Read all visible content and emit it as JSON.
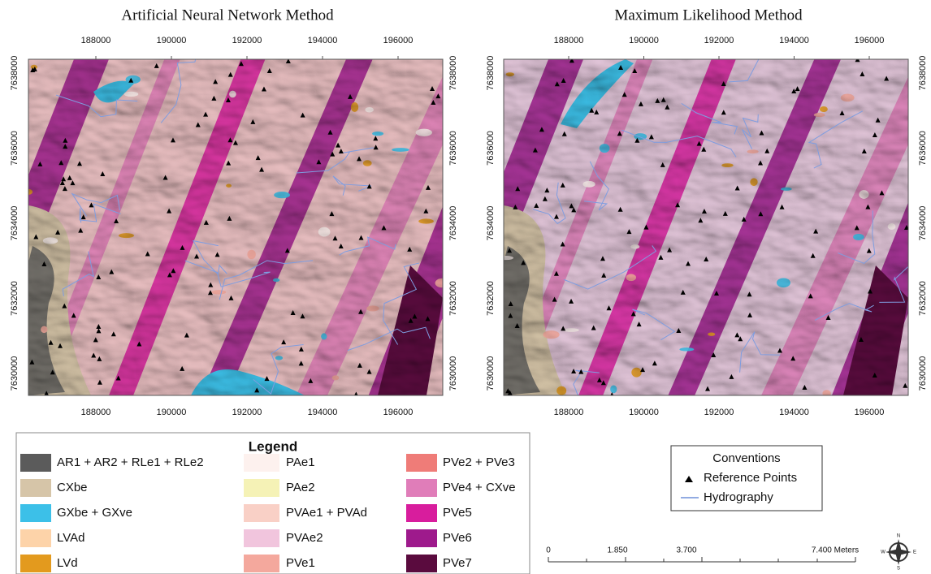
{
  "maps": [
    {
      "title": "Artificial Neural Network Method"
    },
    {
      "title": "Maximum Likelihood Method"
    }
  ],
  "xticks": [
    188000,
    190000,
    192000,
    194000,
    196000
  ],
  "yticks": [
    7630000,
    7632000,
    7634000,
    7636000,
    7638000
  ],
  "legend": {
    "title": "Legend",
    "items": [
      {
        "label": "AR1 + AR2 + RLe1 + RLe2",
        "color": "#5b5b5b"
      },
      {
        "label": "CXbe",
        "color": "#d6c5a8"
      },
      {
        "label": "GXbe + GXve",
        "color": "#3cc0e8"
      },
      {
        "label": "LVAd",
        "color": "#fdd3a9"
      },
      {
        "label": "LVd",
        "color": "#e39a1e"
      },
      {
        "label": "PAe1",
        "color": "#fdf1ee"
      },
      {
        "label": "PAe2",
        "color": "#f5f2b6"
      },
      {
        "label": "PVAe1 + PVAd",
        "color": "#f9d0c6"
      },
      {
        "label": "PVAe2",
        "color": "#f1c5dd"
      },
      {
        "label": "PVe1",
        "color": "#f4a89d"
      },
      {
        "label": "PVe2 + PVe3",
        "color": "#ef7c78"
      },
      {
        "label": "PVe4 + CXve",
        "color": "#e07db9"
      },
      {
        "label": "PVe5",
        "color": "#d81d9d"
      },
      {
        "label": "PVe6",
        "color": "#9e1a8c"
      },
      {
        "label": "PVe7",
        "color": "#5a0b3e"
      }
    ]
  },
  "conventions": {
    "title": "Conventions",
    "items": [
      "Reference Points",
      "Hydrography"
    ]
  },
  "scale": {
    "labels": [
      "0",
      "1.850",
      "3.700",
      "7.400 Meters"
    ]
  },
  "north": {
    "n": "N",
    "s": "S",
    "e": "E",
    "w": "W"
  }
}
